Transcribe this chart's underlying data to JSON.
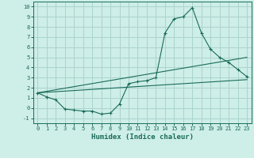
{
  "xlabel": "Humidex (Indice chaleur)",
  "ylabel": "",
  "xlim": [
    -0.5,
    23.5
  ],
  "ylim": [
    -1.5,
    10.5
  ],
  "xticks": [
    0,
    1,
    2,
    3,
    4,
    5,
    6,
    7,
    8,
    9,
    10,
    11,
    12,
    13,
    14,
    15,
    16,
    17,
    18,
    19,
    20,
    21,
    22,
    23
  ],
  "yticks": [
    -1,
    0,
    1,
    2,
    3,
    4,
    5,
    6,
    7,
    8,
    9,
    10
  ],
  "bg_color": "#ceeee8",
  "grid_color": "#aad4cc",
  "line_color": "#1a6b5a",
  "line1_x": [
    0,
    1,
    2,
    3,
    4,
    5,
    6,
    7,
    8,
    9,
    10,
    11,
    12,
    13,
    14,
    15,
    16,
    17,
    18,
    19,
    20,
    21,
    22,
    23
  ],
  "line1_y": [
    1.5,
    1.1,
    0.8,
    -0.1,
    -0.2,
    -0.3,
    -0.3,
    -0.6,
    -0.5,
    0.4,
    2.4,
    2.6,
    2.7,
    3.0,
    7.4,
    8.8,
    9.0,
    9.9,
    7.4,
    5.8,
    5.0,
    4.5,
    3.8,
    3.1
  ],
  "line2_x": [
    0,
    23
  ],
  "line2_y": [
    1.5,
    5.0
  ],
  "line3_x": [
    0,
    23
  ],
  "line3_y": [
    1.5,
    2.8
  ],
  "marker": "+"
}
